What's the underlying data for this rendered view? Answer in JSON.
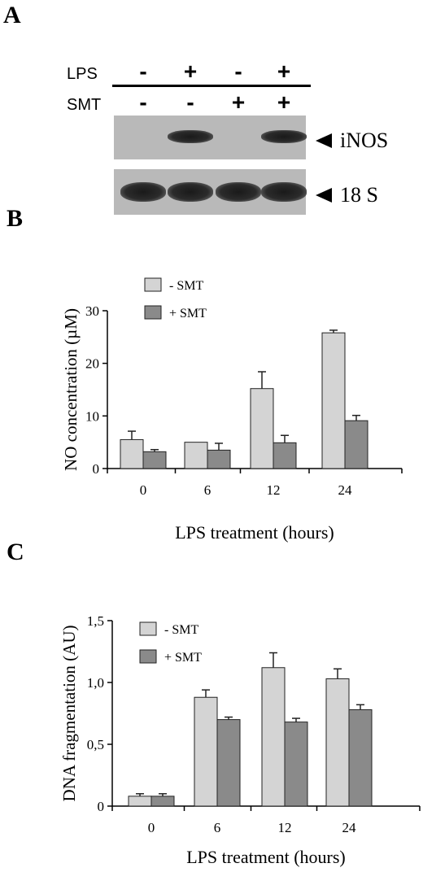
{
  "panels": {
    "a_label": "A",
    "b_label": "B",
    "c_label": "C"
  },
  "blot": {
    "row_lps": "LPS",
    "row_smt": "SMT",
    "lps_signs": [
      "-",
      "+",
      "-",
      "+"
    ],
    "smt_signs": [
      "-",
      "-",
      "+",
      "+"
    ],
    "band_iNOS": "iNOS",
    "band_18s": "18 S",
    "iNOS_presence": [
      0,
      1,
      0,
      1
    ],
    "s18_presence": [
      1,
      1,
      1,
      1
    ]
  },
  "chart_data": [
    {
      "type": "bar",
      "categories": [
        "0",
        "6",
        "12",
        "24"
      ],
      "series": [
        {
          "name": "- SMT",
          "values": [
            5.5,
            5.0,
            15.2,
            25.8
          ],
          "errors": [
            1.6,
            0,
            3.2,
            0.5
          ],
          "color": "#d4d4d4"
        },
        {
          "name": "+ SMT",
          "values": [
            3.2,
            3.5,
            4.9,
            9.1
          ],
          "errors": [
            0.4,
            1.3,
            1.4,
            1.0
          ],
          "color": "#8a8a8a"
        }
      ],
      "ylabel": "NO concentration (µM)",
      "xlabel": "LPS treatment (hours)",
      "ylim": [
        0,
        30
      ],
      "yticks": [
        "0",
        "10",
        "20",
        "30"
      ],
      "legend": "top-left",
      "grid": false
    },
    {
      "type": "bar",
      "categories": [
        "0",
        "6",
        "12",
        "24"
      ],
      "series": [
        {
          "name": "- SMT",
          "values": [
            0.08,
            0.88,
            1.12,
            1.03
          ],
          "errors": [
            0.02,
            0.06,
            0.12,
            0.08
          ],
          "color": "#d4d4d4"
        },
        {
          "name": "+ SMT",
          "values": [
            0.08,
            0.7,
            0.68,
            0.78
          ],
          "errors": [
            0.02,
            0.02,
            0.03,
            0.04
          ],
          "color": "#8a8a8a"
        }
      ],
      "ylabel": "DNA fragmentation (AU)",
      "xlabel": "LPS treatment (hours)",
      "ylim": [
        0,
        1.5
      ],
      "yticks": [
        "0",
        "0,5",
        "1,0",
        "1,5"
      ],
      "legend": "top-left",
      "grid": false
    }
  ]
}
